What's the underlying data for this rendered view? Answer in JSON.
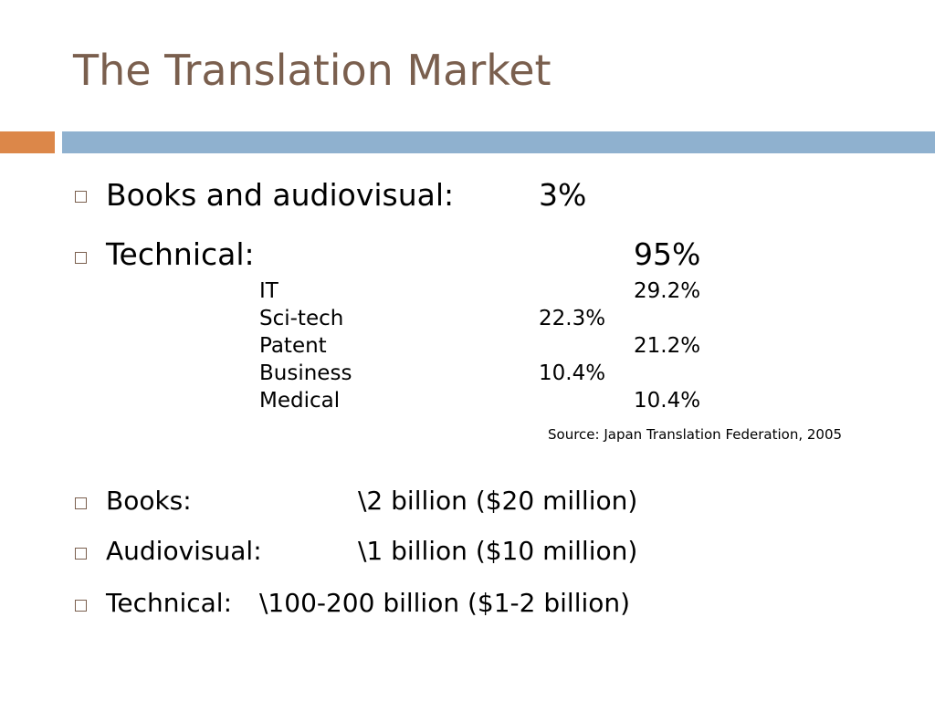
{
  "title": "The Translation Market",
  "market_share": [
    {
      "label": "Books and audiovisual:",
      "value": "3%"
    },
    {
      "label": "Technical:",
      "value": "95%"
    }
  ],
  "technical_breakdown": [
    {
      "label": "IT",
      "value": "29.2%"
    },
    {
      "label": "Sci-tech",
      "value": "22.3%"
    },
    {
      "label": "Patent",
      "value": "21.2%"
    },
    {
      "label": "Business",
      "value": "10.4%"
    },
    {
      "label": "Medical",
      "value": "10.4%"
    }
  ],
  "source": "Source: Japan Translation Federation, 2005",
  "market_size": [
    {
      "label": "Books:",
      "value": "\\2 billion ($20 million)"
    },
    {
      "label": "Audiovisual:",
      "value": "\\1 billion ($10 million)"
    },
    {
      "label": "Technical:",
      "value": "\\100-200 billion ($1-2 billion)"
    }
  ],
  "colors": {
    "title": "#7a5f4e",
    "accent_orange": "#dc8749",
    "accent_blue": "#8fb1cf"
  }
}
